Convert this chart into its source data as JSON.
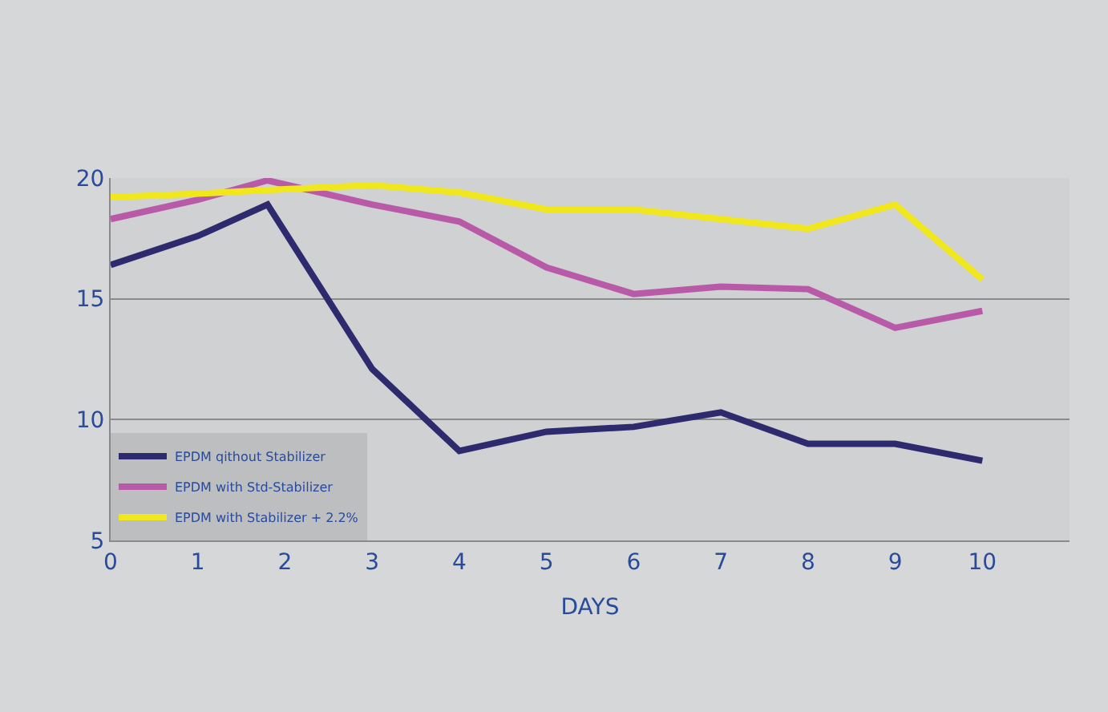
{
  "chart_data": {
    "type": "line",
    "xlabel": "DAYS",
    "x": [
      0,
      1,
      1.8,
      3,
      4,
      5,
      6,
      7,
      8,
      9,
      10
    ],
    "series": [
      {
        "name": "EPDM qithout Stabilizer",
        "color": "#2e2a6e",
        "values": [
          16.4,
          17.6,
          18.9,
          12.1,
          8.7,
          9.5,
          9.7,
          10.3,
          9.0,
          9.0,
          8.3
        ]
      },
      {
        "name": "EPDM with Std-Stabilizer",
        "color": "#b85aa8",
        "values": [
          18.3,
          19.1,
          19.9,
          18.9,
          18.2,
          16.3,
          15.2,
          15.5,
          15.4,
          13.8,
          14.5
        ]
      },
      {
        "name": "EPDM with Stabilizer + 2.2%",
        "color": "#f0e81c",
        "values": [
          19.2,
          19.35,
          19.5,
          19.7,
          19.4,
          18.7,
          18.7,
          18.3,
          17.9,
          18.9,
          15.8
        ]
      }
    ],
    "xlim": [
      0,
      11
    ],
    "xticks": [
      0,
      1,
      2,
      3,
      4,
      5,
      6,
      7,
      8,
      9,
      10
    ],
    "ylim": [
      5,
      20
    ],
    "yticks": [
      5,
      10,
      15,
      20
    ],
    "grid": "y",
    "legend": "bottom left",
    "marker": "none",
    "line_style": "solid"
  }
}
